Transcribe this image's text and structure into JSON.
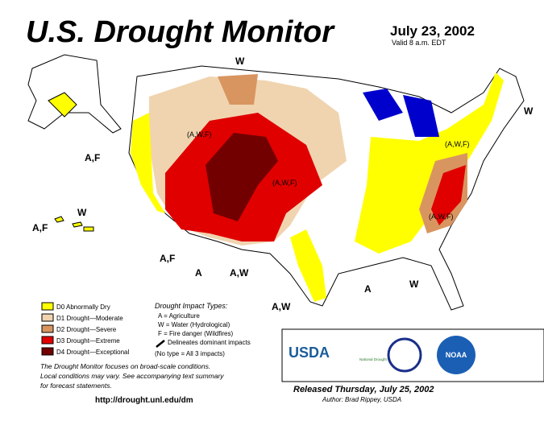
{
  "header": {
    "title": "U.S. Drought Monitor",
    "date": "July 23, 2002",
    "valid": "Valid 8 a.m. EDT"
  },
  "map_labels": [
    "W",
    "(A,W,F)",
    "A,F",
    "A,F",
    "W",
    "A,F",
    "A",
    "A,W",
    "(A,W,F)",
    "(A,W,F)",
    "A,W",
    "A",
    "W",
    "W",
    "(A,W,F)"
  ],
  "legend": [
    {
      "label": "D0 Abnormally Dry",
      "color": "#ffff00"
    },
    {
      "label": "D1 Drought—Moderate",
      "color": "#f0d4b0"
    },
    {
      "label": "D2 Drought—Severe",
      "color": "#d99560"
    },
    {
      "label": "D3 Drought—Extreme",
      "color": "#e00000"
    },
    {
      "label": "D4 Drought—Exceptional",
      "color": "#730000"
    }
  ],
  "impact_types": {
    "title": "Drought Impact Types:",
    "lines": [
      "A = Agriculture",
      "W = Water (Hydrological)",
      "F = Fire danger (Wildfires)"
    ],
    "delineates": "Delineates dominant impacts",
    "no_type": "(No type = All 3 impacts)"
  },
  "note": [
    "The Drought Monitor focuses on broad-scale conditions.",
    "Local conditions may vary. See accompanying text summary",
    "for forecast statements."
  ],
  "url": "http://drought.unl.edu/dm",
  "released": "Released Thursday, July 25, 2002",
  "author": "Author: Brad Rippey, USDA",
  "logos": {
    "usda": "USDA",
    "ndmc": "National Drought Mitigation Center",
    "noaa": "NOAA"
  }
}
